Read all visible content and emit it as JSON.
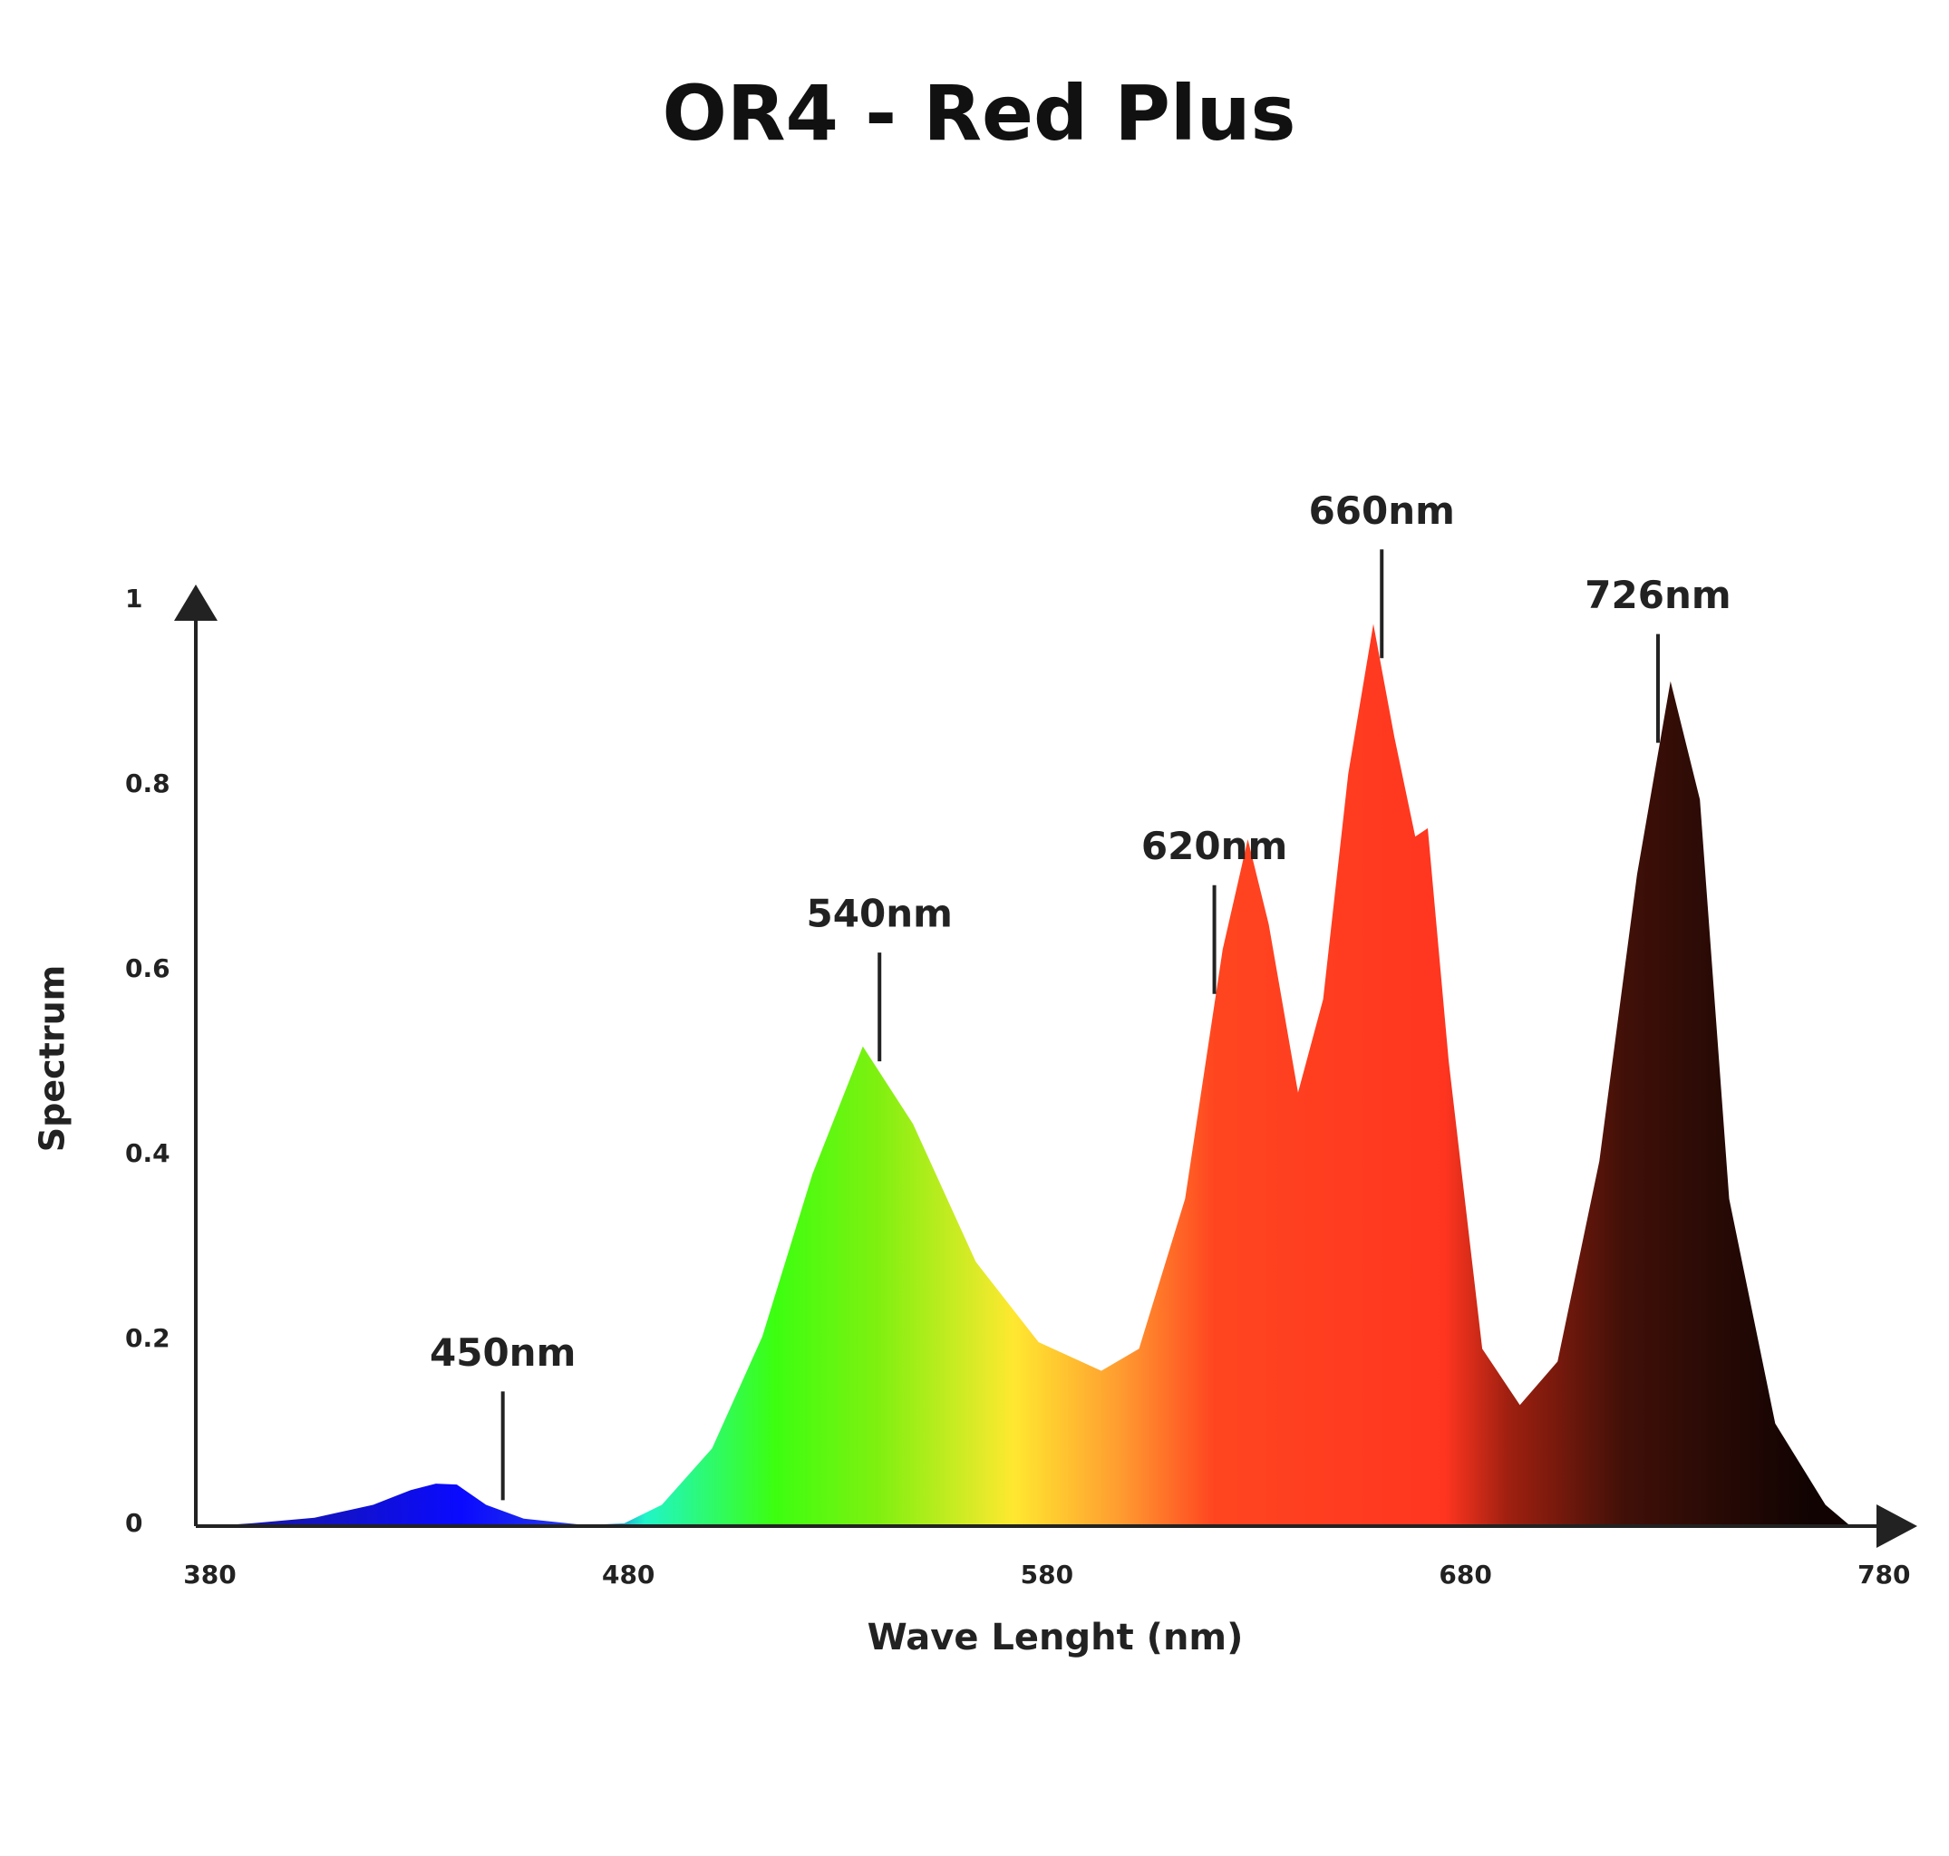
{
  "chart_data": {
    "type": "area",
    "title": "OR4 - Red Plus",
    "x_label": "Wave Lenght (nm)",
    "y_label": "Spectrum",
    "x": [
      380,
      390,
      405,
      419,
      428,
      434,
      439,
      446,
      455,
      470,
      479,
      488,
      500,
      512,
      524,
      536,
      548,
      563,
      578,
      593,
      602,
      613,
      622,
      628,
      633,
      640,
      646,
      652,
      658,
      663,
      668,
      671,
      676,
      684,
      693,
      702,
      712,
      721,
      729,
      736,
      743,
      754,
      766,
      772
    ],
    "values": [
      0,
      0.003,
      0.009,
      0.023,
      0.039,
      0.046,
      0.045,
      0.023,
      0.008,
      0.001,
      0.003,
      0.023,
      0.084,
      0.205,
      0.381,
      0.519,
      0.435,
      0.286,
      0.199,
      0.168,
      0.192,
      0.354,
      0.624,
      0.743,
      0.651,
      0.469,
      0.57,
      0.814,
      0.976,
      0.854,
      0.746,
      0.755,
      0.503,
      0.192,
      0.131,
      0.178,
      0.395,
      0.705,
      0.914,
      0.786,
      0.354,
      0.111,
      0.023,
      0
    ],
    "xlim": [
      380,
      780
    ],
    "xticks": [
      380,
      480,
      580,
      680,
      780
    ],
    "ylim": [
      0,
      1
    ],
    "yticks": [
      0,
      0.2,
      0.4,
      0.6,
      0.8,
      1
    ],
    "grid": false,
    "color_stops": [
      {
        "x": 380,
        "color": "#1a1a90"
      },
      {
        "x": 440,
        "color": "#0a0aff"
      },
      {
        "x": 470,
        "color": "#2a40e0"
      },
      {
        "x": 484,
        "color": "#20f5c8"
      },
      {
        "x": 515,
        "color": "#3cff10"
      },
      {
        "x": 540,
        "color": "#80f010"
      },
      {
        "x": 572,
        "color": "#ffe830"
      },
      {
        "x": 598,
        "color": "#ff9a30"
      },
      {
        "x": 620,
        "color": "#ff4520"
      },
      {
        "x": 675,
        "color": "#ff3520"
      },
      {
        "x": 690,
        "color": "#a02010"
      },
      {
        "x": 718,
        "color": "#401008"
      },
      {
        "x": 763,
        "color": "#100302"
      }
    ],
    "annotations": [
      {
        "label": "450nm",
        "x": 450
      },
      {
        "label": "540nm",
        "x": 540
      },
      {
        "label": "620nm",
        "x": 620
      },
      {
        "label": "660nm",
        "x": 660
      },
      {
        "label": "726nm",
        "x": 726
      }
    ]
  }
}
